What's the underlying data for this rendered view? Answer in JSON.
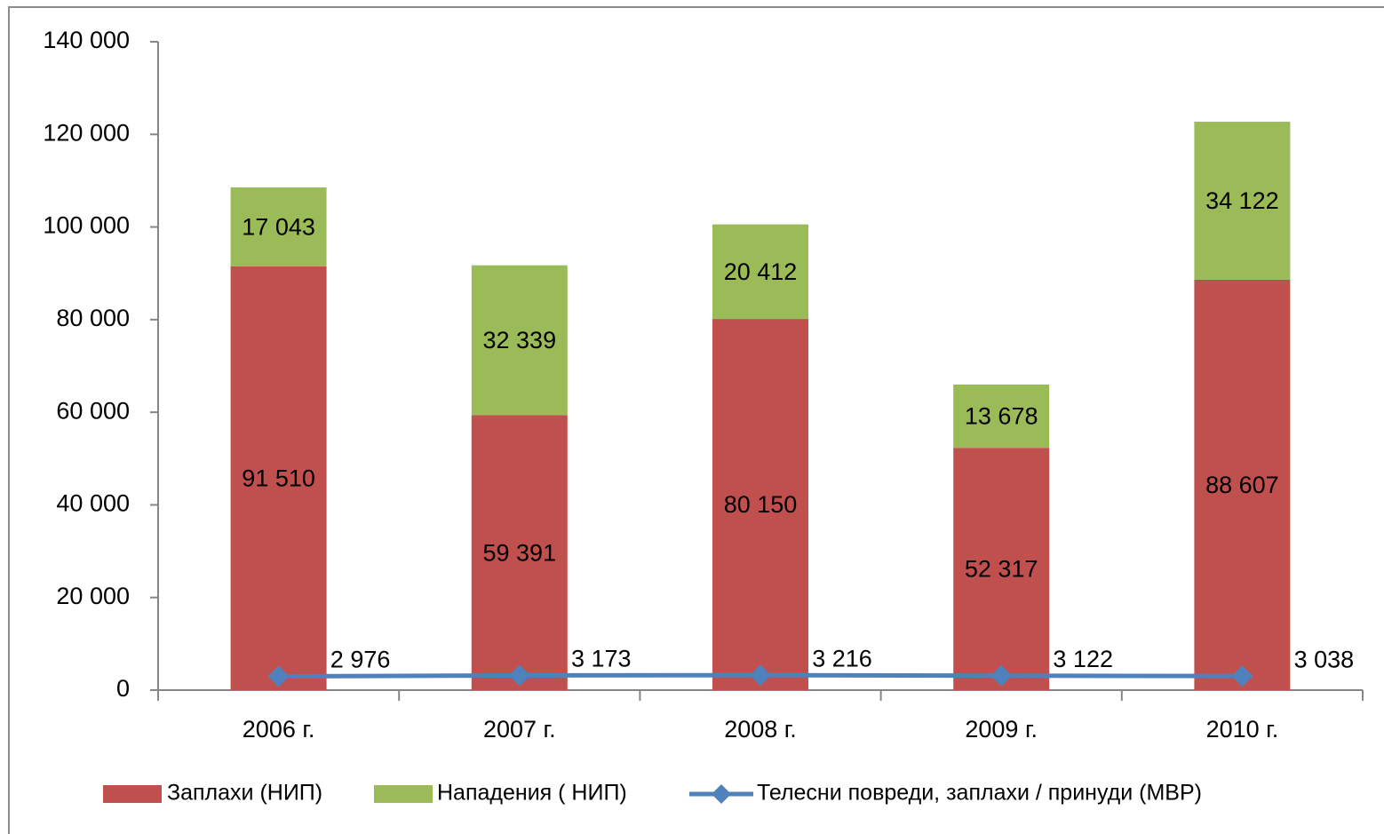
{
  "chart_data": {
    "type": "bar",
    "stacked": true,
    "categories": [
      "2006 г.",
      "2007 г.",
      "2008 г.",
      "2009 г.",
      "2010 г."
    ],
    "series": [
      {
        "name": "Заплахи (НИП)",
        "color": "#c0504d",
        "values": [
          91510,
          59391,
          80150,
          52317,
          88607
        ],
        "value_labels": [
          "91 510",
          "59 391",
          "80 150",
          "52 317",
          "88 607"
        ]
      },
      {
        "name": "Нападения ( НИП)",
        "color": "#9bbb59",
        "values": [
          17043,
          32339,
          20412,
          13678,
          34122
        ],
        "value_labels": [
          "17 043",
          "32 339",
          "20 412",
          "13 678",
          "34 122"
        ]
      },
      {
        "name": "Телесни повреди, заплахи / принуди (МВР)",
        "type": "line",
        "color": "#4f81bd",
        "values": [
          2976,
          3173,
          3216,
          3122,
          3038
        ],
        "value_labels": [
          "2 976",
          "3 173",
          "3 216",
          "3 122",
          "3 038"
        ]
      }
    ],
    "ylim": [
      0,
      140000
    ],
    "yticks": [
      0,
      {
        "value": 20000,
        "label": "20 000"
      },
      {
        "value": 40000,
        "label": "40 000"
      },
      {
        "value": 60000,
        "label": "60 000"
      },
      {
        "value": 80000,
        "label": "80 000"
      },
      {
        "value": 100000,
        "label": "100 000"
      },
      {
        "value": 120000,
        "label": "120 000"
      },
      {
        "value": 140000,
        "label": "140 000"
      }
    ],
    "grid": false,
    "legend": "bottom"
  }
}
